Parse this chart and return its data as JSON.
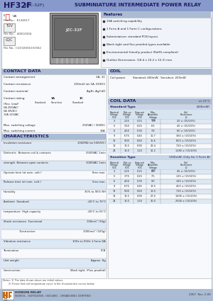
{
  "page_bg": "#dde3f0",
  "header_bg": "#8899cc",
  "header_text_color": "#1a1a5e",
  "section_header_bg": "#aabbd4",
  "table_alt_bg": "#dde8f5",
  "white": "#ffffff",
  "body_color": "#222222",
  "footer_bg": "#aabbd4",
  "features": [
    "10A switching capability",
    "1 Form A and 1 Form C configurations",
    "Subminiature, standard PCB layout",
    "Wash tight and flux proofed types available",
    "Environmental friendly product (RoHS compliant)",
    "Outline Dimensions: (18.4 x 10.2 x 15.3) mm"
  ],
  "coil_power": "Standard: 400mW;  Sensitive: 200mW",
  "characteristics": [
    [
      "Insulation resistance",
      "1000MΩ (at 500VDC)"
    ],
    [
      "Dielectric  Between coil & contacts",
      "2500VAC 1min"
    ],
    [
      "strength  Between open contacts",
      "1000VAC 1min"
    ],
    [
      "Operate time (at nom. volt.)",
      "8ms max."
    ],
    [
      "Release time (at nom. volt.)",
      "5ms max."
    ],
    [
      "Humidity",
      "35% to 95% RH"
    ],
    [
      "Ambient  Standard",
      "-40°C to 70°C"
    ],
    [
      "temperature  High capacity",
      "-40°C to 55°C"
    ],
    [
      "Shock resistance  Functional",
      "100m/s² (10g)"
    ],
    [
      "                  Destructive",
      "1000m/s² (100g)"
    ],
    [
      "Vibration resistance",
      "10Hz to 55Hz 1.5mm DA"
    ],
    [
      "Termination",
      "PCB"
    ],
    [
      "Unit weight",
      "Approx. 8g"
    ],
    [
      "Construction",
      "Wash tight, (Flux proofed)"
    ]
  ],
  "coil_std": [
    [
      "3",
      "2.25",
      "0.15",
      "3.9",
      "20 ± (15/10%)"
    ],
    [
      "5",
      "3.50",
      "0.25",
      "6.5",
      "40 ± (15/10%)"
    ],
    [
      "6",
      "4.50",
      "0.30",
      "7.8",
      "60 ± (15/10%)"
    ],
    [
      "9",
      "6.75",
      "0.45",
      "11.7",
      "360 ± (15/10%)"
    ],
    [
      "12",
      "9.00",
      "0.60",
      "15.6",
      "800 ± (15/10%)"
    ],
    [
      "18",
      "13.5",
      "0.90",
      "23.4",
      "720 ± (15/10%)"
    ],
    [
      "24",
      "18.0",
      "1.20",
      "31.2",
      "1280 ± (15/10%)"
    ]
  ],
  "coil_sen": [
    [
      "3",
      "2.25",
      "0.15",
      "4.5",
      "45 ± (15/10%)"
    ],
    [
      "5",
      "3.75",
      "0.25",
      "7.5",
      "125 ± (15/10%)"
    ],
    [
      "6",
      "4.50",
      "0.30",
      "9.0",
      "180 ± (15/10%)"
    ],
    [
      "9",
      "6.75",
      "0.45",
      "13.5",
      "400 ± (15/10%)"
    ],
    [
      "12",
      "9.00",
      "0.60",
      "18.0",
      "720 ± (15/10%)"
    ],
    [
      "18",
      "13.5",
      "0.90",
      "27.0",
      "1800 ± (15/10%)"
    ],
    [
      "24",
      "18.0",
      "1.20",
      "36.0",
      "2500 ± (15/10%)"
    ]
  ],
  "col_headers": [
    "Nominal\nVoltage\nVDC",
    "Pick-up\nVoltage\nVDC",
    "Drop-out\nVoltage\nVDC",
    "Max.\nAllowable\nVoltage\nVDC",
    "Coil\nResistance\nΩ"
  ],
  "footer_text": "ISO9001 , ISOTS16949 , ISO14001 , OHSAS18001 CERTIFIED",
  "footer_right": "2007  Rev. 2.00",
  "page_num": "72"
}
